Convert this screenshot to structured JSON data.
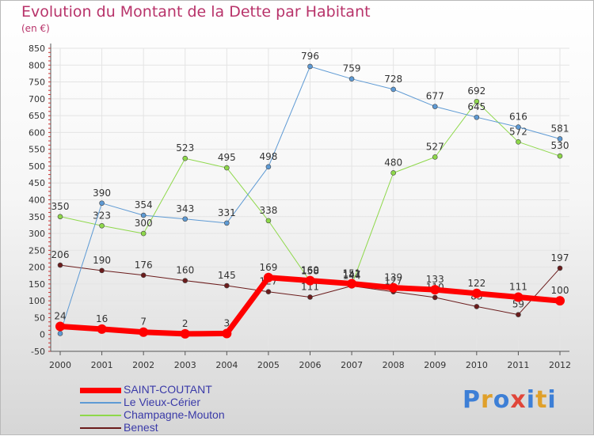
{
  "header": {
    "title": "Evolution du Montant de la Dette par Habitant",
    "subtitle": "(en €)"
  },
  "logo": {
    "text": "Proxiti",
    "colors": [
      "#3d7fd6",
      "#e0a02a",
      "#3d7fd6",
      "#e0463a",
      "#3d7fd6",
      "#e0a02a",
      "#3d7fd6"
    ]
  },
  "chart_data": {
    "type": "line",
    "title": "Evolution du Montant de la Dette par Habitant",
    "subtitle": "(en €)",
    "xlabel": "",
    "ylabel": "",
    "x": [
      "2000",
      "2001",
      "2002",
      "2003",
      "2004",
      "2005",
      "2006",
      "2007",
      "2008",
      "2009",
      "2010",
      "2011",
      "2012"
    ],
    "ylim": [
      -50,
      850
    ],
    "yticks": [
      -50,
      0,
      50,
      100,
      150,
      200,
      250,
      300,
      350,
      400,
      450,
      500,
      550,
      600,
      650,
      700,
      750,
      800,
      850
    ],
    "grid": true,
    "legend_position": "bottom-left",
    "series": [
      {
        "name": "Benest",
        "color": "#6b1c1c",
        "width": 1,
        "values": [
          206,
          190,
          176,
          160,
          145,
          127,
          111,
          144,
          127,
          110,
          83,
          59,
          197
        ],
        "labels": [
          "206",
          "190",
          "176",
          "160",
          "145",
          "127",
          "111",
          "144",
          "127",
          "110",
          "83",
          "59",
          "197"
        ]
      },
      {
        "name": "Champagne-Mouton",
        "color": "#8ed84a",
        "width": 1,
        "values": [
          350,
          323,
          300,
          523,
          495,
          338,
          158,
          147,
          480,
          527,
          692,
          572,
          530
        ],
        "labels": [
          "350",
          "323",
          "300",
          "523",
          "495",
          "338",
          "158",
          "147",
          "480",
          "527",
          "692",
          "572",
          "530"
        ]
      },
      {
        "name": "Le Vieux-Cérier",
        "color": "#5e9ad4",
        "width": 1,
        "values": [
          3,
          390,
          354,
          343,
          331,
          498,
          796,
          759,
          728,
          677,
          645,
          616,
          581
        ],
        "labels": [
          "",
          "390",
          "354",
          "343",
          "331",
          "498",
          "796",
          "759",
          "728",
          "677",
          "645",
          "616",
          "581"
        ]
      },
      {
        "name": "SAINT-COUTANT",
        "color": "#ff0000",
        "width": 7,
        "values": [
          24,
          16,
          7,
          2,
          3,
          169,
          160,
          151,
          139,
          133,
          122,
          111,
          100
        ],
        "labels": [
          "24",
          "16",
          "7",
          "2",
          "3",
          "169",
          "160",
          "151",
          "139",
          "133",
          "122",
          "111",
          "100"
        ]
      }
    ]
  },
  "legend": {
    "items": [
      {
        "name": "SAINT-COUTANT",
        "color": "#ff0000",
        "thickness": 7
      },
      {
        "name": "Le Vieux-Cérier",
        "color": "#5e9ad4",
        "thickness": 2
      },
      {
        "name": "Champagne-Mouton",
        "color": "#8ed84a",
        "thickness": 2
      },
      {
        "name": "Benest",
        "color": "#6b1c1c",
        "thickness": 2
      }
    ]
  }
}
